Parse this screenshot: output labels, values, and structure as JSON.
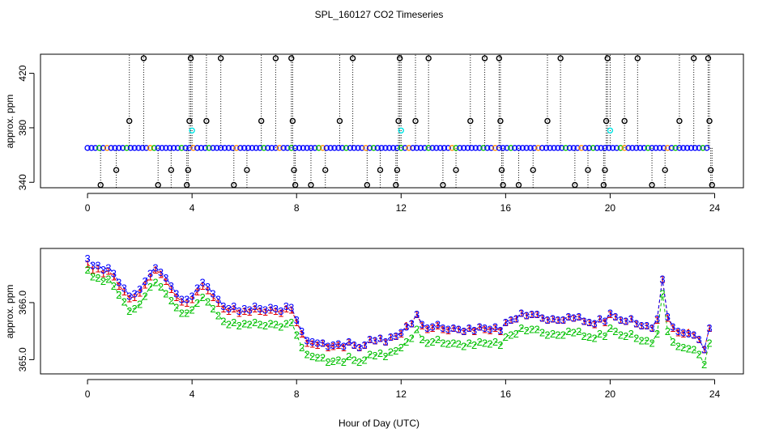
{
  "title": "SPL_160127  CO2 Timeseries",
  "x_label": "Hour of Day (UTC)",
  "colors": {
    "black": "#000000",
    "blue": "#0000ff",
    "cyan": "#00e5e5",
    "green": "#00c000",
    "orange": "#ff8c00",
    "red": "#e00000",
    "frame": "#000000"
  },
  "chart_data": [
    {
      "type": "scatter",
      "title": "SPL_160127  CO2 Timeseries",
      "xlabel": "",
      "ylabel": "approx. ppm",
      "xlim": [
        -1.8,
        25.1
      ],
      "ylim": [
        336,
        434
      ],
      "xticks": [
        0,
        4,
        8,
        12,
        16,
        20,
        24
      ],
      "yticks": [
        340,
        380,
        420
      ],
      "baseline_ppm": 365.2,
      "baseline_hours": [
        0.0,
        0.15,
        0.3,
        0.45,
        0.6,
        0.75,
        0.9,
        1.05,
        1.2,
        1.35,
        1.5,
        1.65,
        1.8,
        1.95,
        2.1,
        2.25,
        2.4,
        2.55,
        2.7,
        2.85,
        3.0,
        3.15,
        3.3,
        3.45,
        3.6,
        3.75,
        3.9,
        4.05,
        4.2,
        4.35,
        4.5,
        4.65,
        4.8,
        4.95,
        5.1,
        5.25,
        5.4,
        5.55,
        5.7,
        5.85,
        6.0,
        6.15,
        6.3,
        6.45,
        6.6,
        6.75,
        6.9,
        7.05,
        7.2,
        7.35,
        7.5,
        7.65,
        7.8,
        7.95,
        8.1,
        8.25,
        8.4,
        8.55,
        8.7,
        8.85,
        9.0,
        9.15,
        9.3,
        9.45,
        9.6,
        9.75,
        9.9,
        10.05,
        10.2,
        10.35,
        10.5,
        10.65,
        10.8,
        10.95,
        11.1,
        11.25,
        11.4,
        11.55,
        11.7,
        11.85,
        12.0,
        12.15,
        12.3,
        12.45,
        12.6,
        12.75,
        12.9,
        13.05,
        13.2,
        13.35,
        13.5,
        13.65,
        13.8,
        13.95,
        14.1,
        14.25,
        14.4,
        14.55,
        14.7,
        14.85,
        15.0,
        15.15,
        15.3,
        15.45,
        15.6,
        15.75,
        15.9,
        16.05,
        16.2,
        16.35,
        16.5,
        16.65,
        16.8,
        16.95,
        17.1,
        17.25,
        17.4,
        17.55,
        17.7,
        17.85,
        18.0,
        18.15,
        18.3,
        18.45,
        18.6,
        18.75,
        18.9,
        19.05,
        19.2,
        19.35,
        19.5,
        19.65,
        19.8,
        19.95,
        20.1,
        20.25,
        20.4,
        20.55,
        20.7,
        20.85,
        21.0,
        21.15,
        21.3,
        21.45,
        21.6,
        21.75,
        21.9,
        22.05,
        22.2,
        22.35,
        22.5,
        22.65,
        22.8,
        22.95,
        23.1,
        23.25,
        23.4,
        23.55,
        23.7
      ],
      "outliers": [
        {
          "hour": 0.5,
          "ppm": 338,
          "color": "black"
        },
        {
          "hour": 1.1,
          "ppm": 349,
          "color": "black"
        },
        {
          "hour": 1.6,
          "ppm": 385,
          "color": "black"
        },
        {
          "hour": 2.15,
          "ppm": 431,
          "color": "black"
        },
        {
          "hour": 2.7,
          "ppm": 338,
          "color": "black"
        },
        {
          "hour": 3.2,
          "ppm": 349,
          "color": "black"
        },
        {
          "hour": 3.8,
          "ppm": 338,
          "color": "black"
        },
        {
          "hour": 3.85,
          "ppm": 349,
          "color": "black"
        },
        {
          "hour": 3.9,
          "ppm": 385,
          "color": "black"
        },
        {
          "hour": 3.95,
          "ppm": 431,
          "color": "black"
        },
        {
          "hour": 4.0,
          "ppm": 378,
          "color": "cyan"
        },
        {
          "hour": 4.55,
          "ppm": 385,
          "color": "black"
        },
        {
          "hour": 5.1,
          "ppm": 431,
          "color": "black"
        },
        {
          "hour": 5.6,
          "ppm": 338,
          "color": "black"
        },
        {
          "hour": 6.1,
          "ppm": 349,
          "color": "black"
        },
        {
          "hour": 6.65,
          "ppm": 385,
          "color": "black"
        },
        {
          "hour": 7.2,
          "ppm": 431,
          "color": "black"
        },
        {
          "hour": 7.8,
          "ppm": 431,
          "color": "black"
        },
        {
          "hour": 7.85,
          "ppm": 385,
          "color": "black"
        },
        {
          "hour": 7.9,
          "ppm": 349,
          "color": "black"
        },
        {
          "hour": 7.95,
          "ppm": 338,
          "color": "black"
        },
        {
          "hour": 8.55,
          "ppm": 338,
          "color": "black"
        },
        {
          "hour": 9.1,
          "ppm": 349,
          "color": "black"
        },
        {
          "hour": 9.65,
          "ppm": 385,
          "color": "black"
        },
        {
          "hour": 10.15,
          "ppm": 431,
          "color": "black"
        },
        {
          "hour": 10.7,
          "ppm": 338,
          "color": "black"
        },
        {
          "hour": 11.2,
          "ppm": 349,
          "color": "black"
        },
        {
          "hour": 11.8,
          "ppm": 338,
          "color": "black"
        },
        {
          "hour": 11.85,
          "ppm": 349,
          "color": "black"
        },
        {
          "hour": 11.9,
          "ppm": 385,
          "color": "black"
        },
        {
          "hour": 11.95,
          "ppm": 431,
          "color": "black"
        },
        {
          "hour": 12.0,
          "ppm": 378,
          "color": "cyan"
        },
        {
          "hour": 12.55,
          "ppm": 385,
          "color": "black"
        },
        {
          "hour": 13.05,
          "ppm": 431,
          "color": "black"
        },
        {
          "hour": 13.6,
          "ppm": 338,
          "color": "black"
        },
        {
          "hour": 14.1,
          "ppm": 349,
          "color": "black"
        },
        {
          "hour": 14.65,
          "ppm": 385,
          "color": "black"
        },
        {
          "hour": 15.2,
          "ppm": 431,
          "color": "black"
        },
        {
          "hour": 15.75,
          "ppm": 431,
          "color": "black"
        },
        {
          "hour": 15.8,
          "ppm": 385,
          "color": "black"
        },
        {
          "hour": 15.85,
          "ppm": 349,
          "color": "black"
        },
        {
          "hour": 15.9,
          "ppm": 338,
          "color": "black"
        },
        {
          "hour": 16.5,
          "ppm": 338,
          "color": "black"
        },
        {
          "hour": 17.05,
          "ppm": 349,
          "color": "black"
        },
        {
          "hour": 17.6,
          "ppm": 385,
          "color": "black"
        },
        {
          "hour": 18.1,
          "ppm": 431,
          "color": "black"
        },
        {
          "hour": 18.65,
          "ppm": 338,
          "color": "black"
        },
        {
          "hour": 19.15,
          "ppm": 349,
          "color": "black"
        },
        {
          "hour": 19.75,
          "ppm": 338,
          "color": "black"
        },
        {
          "hour": 19.8,
          "ppm": 349,
          "color": "black"
        },
        {
          "hour": 19.85,
          "ppm": 385,
          "color": "black"
        },
        {
          "hour": 19.9,
          "ppm": 431,
          "color": "black"
        },
        {
          "hour": 20.0,
          "ppm": 378,
          "color": "cyan"
        },
        {
          "hour": 20.55,
          "ppm": 385,
          "color": "black"
        },
        {
          "hour": 21.05,
          "ppm": 431,
          "color": "black"
        },
        {
          "hour": 21.6,
          "ppm": 338,
          "color": "black"
        },
        {
          "hour": 22.1,
          "ppm": 349,
          "color": "black"
        },
        {
          "hour": 22.65,
          "ppm": 385,
          "color": "black"
        },
        {
          "hour": 23.2,
          "ppm": 431,
          "color": "black"
        },
        {
          "hour": 23.75,
          "ppm": 431,
          "color": "black"
        },
        {
          "hour": 23.8,
          "ppm": 385,
          "color": "black"
        },
        {
          "hour": 23.85,
          "ppm": 349,
          "color": "black"
        },
        {
          "hour": 23.9,
          "ppm": 338,
          "color": "black"
        }
      ]
    },
    {
      "type": "line",
      "title": "",
      "xlabel": "Hour of Day (UTC)",
      "ylabel": "approx. ppm",
      "xlim": [
        -1.8,
        25.1
      ],
      "ylim": [
        364.75,
        366.95
      ],
      "xticks": [
        0,
        4,
        8,
        12,
        16,
        20,
        24
      ],
      "yticks": [
        365.0,
        366.0
      ],
      "x": [
        0.0,
        0.2,
        0.4,
        0.6,
        0.8,
        1.0,
        1.2,
        1.4,
        1.6,
        1.8,
        2.0,
        2.2,
        2.4,
        2.6,
        2.8,
        3.0,
        3.2,
        3.4,
        3.6,
        3.8,
        4.0,
        4.2,
        4.4,
        4.6,
        4.8,
        5.0,
        5.2,
        5.4,
        5.6,
        5.8,
        6.0,
        6.2,
        6.4,
        6.6,
        6.8,
        7.0,
        7.2,
        7.4,
        7.6,
        7.8,
        8.0,
        8.2,
        8.4,
        8.6,
        8.8,
        9.0,
        9.2,
        9.4,
        9.6,
        9.8,
        10.0,
        10.2,
        10.4,
        10.6,
        10.8,
        11.0,
        11.2,
        11.4,
        11.6,
        11.8,
        12.0,
        12.2,
        12.4,
        12.6,
        12.8,
        13.0,
        13.2,
        13.4,
        13.6,
        13.8,
        14.0,
        14.2,
        14.4,
        14.6,
        14.8,
        15.0,
        15.2,
        15.4,
        15.6,
        15.8,
        16.0,
        16.2,
        16.4,
        16.6,
        16.8,
        17.0,
        17.2,
        17.4,
        17.6,
        17.8,
        18.0,
        18.2,
        18.4,
        18.6,
        18.8,
        19.0,
        19.2,
        19.4,
        19.6,
        19.8,
        20.0,
        20.2,
        20.4,
        20.6,
        20.8,
        21.0,
        21.2,
        21.4,
        21.6,
        21.8,
        22.0,
        22.2,
        22.4,
        22.6,
        22.8,
        23.0,
        23.2,
        23.4,
        23.6,
        23.8
      ],
      "series": [
        {
          "name": "1",
          "color": "red",
          "values": [
            366.68,
            366.58,
            366.6,
            366.52,
            366.56,
            366.46,
            366.3,
            366.2,
            366.08,
            366.1,
            366.18,
            366.32,
            366.46,
            366.58,
            366.5,
            366.38,
            366.24,
            366.1,
            366.02,
            366.0,
            366.06,
            366.2,
            366.3,
            366.22,
            366.1,
            366.0,
            365.9,
            365.86,
            365.9,
            365.82,
            365.86,
            365.84,
            365.9,
            365.86,
            365.84,
            365.88,
            365.86,
            365.82,
            365.9,
            365.88,
            365.66,
            365.46,
            365.3,
            365.28,
            365.26,
            365.3,
            365.22,
            365.24,
            365.26,
            365.22,
            365.32,
            365.26,
            365.22,
            365.26,
            365.36,
            365.34,
            365.38,
            365.32,
            365.4,
            365.42,
            365.46,
            365.6,
            365.64,
            365.8,
            365.6,
            365.54,
            365.56,
            365.6,
            365.54,
            365.52,
            365.56,
            365.54,
            365.5,
            365.56,
            365.5,
            365.58,
            365.54,
            365.52,
            365.56,
            365.5,
            365.66,
            365.7,
            365.72,
            365.82,
            365.78,
            365.8,
            365.8,
            365.74,
            365.7,
            365.72,
            365.7,
            365.7,
            365.76,
            365.74,
            365.76,
            365.68,
            365.66,
            365.62,
            365.72,
            365.66,
            365.8,
            365.76,
            365.7,
            365.68,
            365.72,
            365.64,
            365.6,
            365.6,
            365.56,
            365.7,
            366.42,
            365.74,
            365.56,
            365.48,
            365.46,
            365.48,
            365.44,
            365.36,
            365.18,
            365.56
          ]
        },
        {
          "name": "2",
          "color": "green",
          "values": [
            366.58,
            366.46,
            366.44,
            366.38,
            366.42,
            366.3,
            366.14,
            366.02,
            365.86,
            365.9,
            365.98,
            366.12,
            366.28,
            366.36,
            366.28,
            366.16,
            366.04,
            365.92,
            365.82,
            365.82,
            365.88,
            366.0,
            366.1,
            366.02,
            365.9,
            365.78,
            365.68,
            365.62,
            365.66,
            365.6,
            365.64,
            365.62,
            365.66,
            365.62,
            365.6,
            365.64,
            365.62,
            365.58,
            365.64,
            365.66,
            365.44,
            365.22,
            365.1,
            365.06,
            365.04,
            365.04,
            364.96,
            364.98,
            365.0,
            364.96,
            365.06,
            365.0,
            364.96,
            365.0,
            365.1,
            365.08,
            365.12,
            365.06,
            365.14,
            365.16,
            365.22,
            365.32,
            365.38,
            365.54,
            365.36,
            365.3,
            365.32,
            365.36,
            365.3,
            365.28,
            365.3,
            365.28,
            365.24,
            365.3,
            365.26,
            365.32,
            365.3,
            365.28,
            365.32,
            365.26,
            365.4,
            365.44,
            365.46,
            365.56,
            365.52,
            365.54,
            365.54,
            365.48,
            365.44,
            365.46,
            365.44,
            365.44,
            365.5,
            365.48,
            365.5,
            365.42,
            365.4,
            365.38,
            365.46,
            365.42,
            365.56,
            365.5,
            365.44,
            365.42,
            365.46,
            365.38,
            365.34,
            365.34,
            365.3,
            365.46,
            366.16,
            365.5,
            365.32,
            365.24,
            365.22,
            365.2,
            365.18,
            365.1,
            364.92,
            365.3
          ]
        },
        {
          "name": "3",
          "color": "blue",
          "values": [
            366.78,
            366.66,
            366.66,
            366.58,
            366.62,
            366.52,
            366.36,
            366.26,
            366.12,
            366.16,
            366.24,
            366.38,
            366.52,
            366.62,
            366.54,
            366.44,
            366.3,
            366.16,
            366.06,
            366.06,
            366.12,
            366.26,
            366.36,
            366.28,
            366.16,
            366.06,
            365.94,
            365.9,
            365.94,
            365.86,
            365.9,
            365.88,
            365.94,
            365.9,
            365.88,
            365.92,
            365.9,
            365.86,
            365.94,
            365.92,
            365.7,
            365.5,
            365.34,
            365.32,
            365.3,
            365.3,
            365.24,
            365.26,
            365.28,
            365.24,
            365.32,
            365.26,
            365.22,
            365.26,
            365.36,
            365.34,
            365.38,
            365.32,
            365.4,
            365.42,
            365.48,
            365.58,
            365.64,
            365.8,
            365.62,
            365.56,
            365.58,
            365.62,
            365.56,
            365.54,
            365.56,
            365.54,
            365.5,
            365.56,
            365.52,
            365.58,
            365.56,
            365.54,
            365.58,
            365.52,
            365.66,
            365.7,
            365.72,
            365.82,
            365.78,
            365.8,
            365.8,
            365.74,
            365.7,
            365.72,
            365.7,
            365.7,
            365.76,
            365.74,
            365.76,
            365.68,
            365.66,
            365.64,
            365.72,
            365.68,
            365.82,
            365.76,
            365.7,
            365.68,
            365.72,
            365.64,
            365.6,
            365.6,
            365.56,
            365.72,
            366.42,
            365.76,
            365.58,
            365.5,
            365.48,
            365.46,
            365.44,
            365.36,
            365.18,
            365.56
          ]
        }
      ]
    }
  ]
}
